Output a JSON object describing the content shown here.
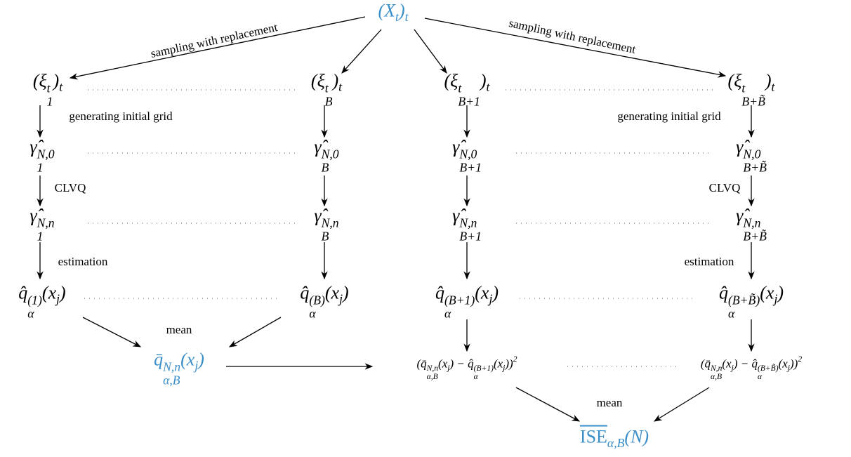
{
  "nodes": [
    {
      "parts": [
        {
          "t": "(X"
        },
        {
          "t": "t",
          "s": "sub"
        },
        {
          "t": ")"
        },
        {
          "t": "t",
          "s": "sub"
        }
      ]
    },
    {
      "parts": [
        {
          "t": "(ξ"
        },
        {
          "t": "t",
          "s": "sup",
          "b": "1"
        },
        {
          "t": ")"
        },
        {
          "t": "t",
          "s": "sub"
        }
      ]
    },
    {
      "parts": [
        {
          "t": "(ξ"
        },
        {
          "t": "t",
          "s": "sup",
          "b": "B"
        },
        {
          "t": ")"
        },
        {
          "t": "t",
          "s": "sub"
        }
      ]
    },
    {
      "parts": [
        {
          "t": "(ξ"
        },
        {
          "t": "t",
          "s": "sup",
          "b": "B+1"
        },
        {
          "t": ")"
        },
        {
          "t": "t",
          "s": "sub"
        }
      ]
    },
    {
      "parts": [
        {
          "t": "(ξ"
        },
        {
          "t": "t",
          "s": "sup",
          "b": "B+B̃"
        },
        {
          "t": ")"
        },
        {
          "t": "t",
          "s": "sub"
        }
      ]
    },
    {
      "parts": [
        {
          "t": "γ̂"
        },
        {
          "t": "N,0",
          "s": "sup",
          "b": "1"
        }
      ]
    },
    {
      "parts": [
        {
          "t": "γ̂"
        },
        {
          "t": "N,0",
          "s": "sup",
          "b": "B"
        }
      ]
    },
    {
      "parts": [
        {
          "t": "γ̂"
        },
        {
          "t": "N,0",
          "s": "sup",
          "b": "B+1"
        }
      ]
    },
    {
      "parts": [
        {
          "t": "γ̂"
        },
        {
          "t": "N,0",
          "s": "sup",
          "b": "B+B̃"
        }
      ]
    },
    {
      "parts": [
        {
          "t": "γ̂"
        },
        {
          "t": "N,n",
          "s": "sup",
          "b": "1"
        }
      ]
    },
    {
      "parts": [
        {
          "t": "γ̂"
        },
        {
          "t": "N,n",
          "s": "sup",
          "b": "B"
        }
      ]
    },
    {
      "parts": [
        {
          "t": "γ̂"
        },
        {
          "t": "N,n",
          "s": "sup",
          "b": "B+1"
        }
      ]
    },
    {
      "parts": [
        {
          "t": "γ̂"
        },
        {
          "t": "N,n",
          "s": "sup",
          "b": "B+B̃"
        }
      ]
    },
    {
      "parts": [
        {
          "t": "q̂"
        },
        {
          "t": "(1)",
          "s": "sup",
          "b": "α"
        },
        {
          "t": "(x"
        },
        {
          "t": "j",
          "s": "sub"
        },
        {
          "t": ")"
        }
      ]
    },
    {
      "parts": [
        {
          "t": "q̂"
        },
        {
          "t": "(B)",
          "s": "sup",
          "b": "α"
        },
        {
          "t": "(x"
        },
        {
          "t": "j",
          "s": "sub"
        },
        {
          "t": ")"
        }
      ]
    },
    {
      "parts": [
        {
          "t": "q̂"
        },
        {
          "t": "(B+1)",
          "s": "sup",
          "b": "α"
        },
        {
          "t": "(x"
        },
        {
          "t": "j",
          "s": "sub"
        },
        {
          "t": ")"
        }
      ]
    },
    {
      "parts": [
        {
          "t": "q̂"
        },
        {
          "t": "(B+B̃)",
          "s": "sup",
          "b": "α"
        },
        {
          "t": "(x"
        },
        {
          "t": "j",
          "s": "sub"
        },
        {
          "t": ")"
        }
      ]
    },
    {
      "parts": [
        {
          "t": "q̄"
        },
        {
          "t": "N,n",
          "s": "sup",
          "b": "α,B"
        },
        {
          "t": "(x"
        },
        {
          "t": "j",
          "s": "sub"
        },
        {
          "t": ")"
        }
      ]
    },
    {
      "parts": [
        {
          "t": "(q̄"
        },
        {
          "t": "N,n",
          "s": "sup",
          "b": "α,B"
        },
        {
          "t": "(x"
        },
        {
          "t": "j",
          "s": "sub"
        },
        {
          "t": ") − q̂"
        },
        {
          "t": "(B+1)",
          "s": "sup",
          "b": "α"
        },
        {
          "t": "(x"
        },
        {
          "t": "j",
          "s": "sub"
        },
        {
          "t": "))"
        },
        {
          "t": "2",
          "s": "sup"
        }
      ]
    },
    {
      "parts": [
        {
          "t": "(q̄"
        },
        {
          "t": "N,n",
          "s": "sup",
          "b": "α,B"
        },
        {
          "t": "(x"
        },
        {
          "t": "j",
          "s": "sub"
        },
        {
          "t": ") − q̂"
        },
        {
          "t": "(B+B̃)",
          "s": "sup",
          "b": "α"
        },
        {
          "t": "(x"
        },
        {
          "t": "j",
          "s": "sub"
        },
        {
          "t": "))"
        },
        {
          "t": "2",
          "s": "sup"
        }
      ]
    },
    {
      "parts": [
        {
          "t": "ISE",
          "s": "ov"
        },
        {
          "t": "α,B",
          "s": "sub"
        },
        {
          "t": "(N)"
        }
      ]
    }
  ],
  "edge_labels": [
    "sampling with replacement",
    "sampling with replacement",
    "generating initial grid",
    "generating initial grid",
    "CLVQ",
    "CLVQ",
    "estimation",
    "estimation",
    "mean",
    "mean"
  ]
}
